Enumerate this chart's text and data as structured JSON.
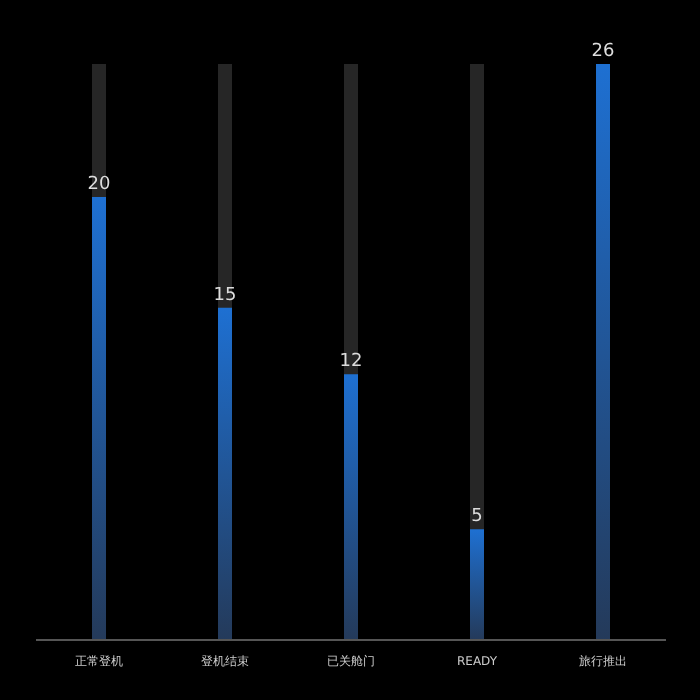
{
  "chart_data": {
    "type": "bar",
    "categories": [
      "正常登机",
      "登机结束",
      "已关舱门",
      "READY",
      "旅行推出"
    ],
    "values": [
      20,
      15,
      12,
      5,
      26
    ],
    "color": "#1e70d2",
    "data_labels": true,
    "tick_labels": "x",
    "legend": false
  }
}
